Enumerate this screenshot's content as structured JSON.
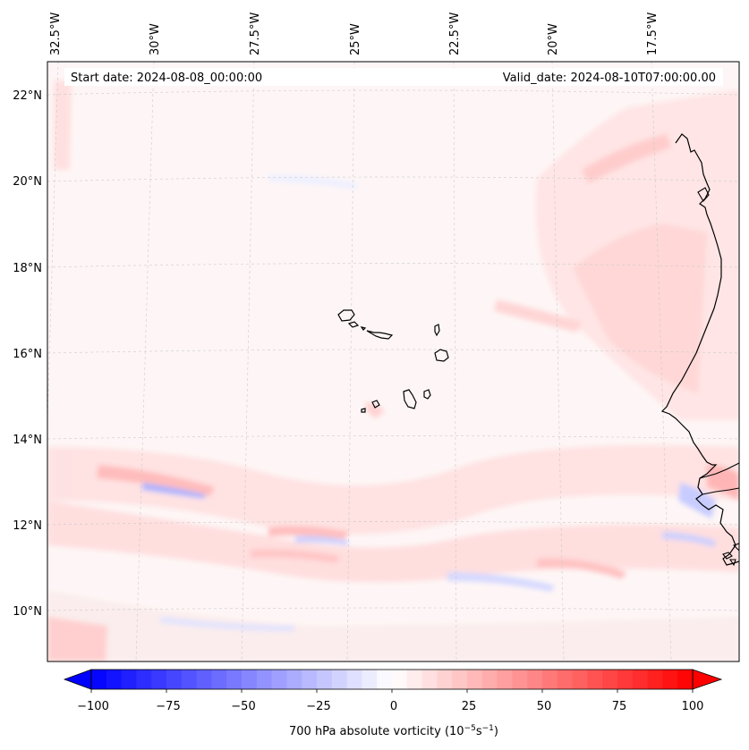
{
  "map": {
    "start_date": "Start date: 2024-08-08_00:00:00",
    "valid_date": "Valid_date: 2024-08-10T07:00:00.00",
    "lon_labels": [
      "32.5°W",
      "30°W",
      "27.5°W",
      "25°W",
      "22.5°W",
      "20°W",
      "17.5°W"
    ],
    "lat_labels": [
      "22°N",
      "20°N",
      "18°N",
      "16°N",
      "14°N",
      "12°N",
      "10°N"
    ]
  },
  "colorbar": {
    "label": "700 hPa absolute vorticity (10",
    "label_exp1": "−5",
    "label_mid": "s",
    "label_exp2": "−1",
    "label_end": ")",
    "ticks": [
      "−100",
      "−75",
      "−50",
      "−25",
      "0",
      "25",
      "50",
      "75",
      "100"
    ],
    "min_color": "#0000ff",
    "mid_color": "#ffffff",
    "max_color": "#ff0000"
  }
}
